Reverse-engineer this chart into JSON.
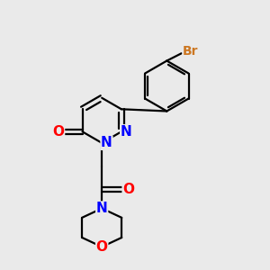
{
  "background_color": "#EAEAEA",
  "bond_color": "#000000",
  "bond_width": 1.6,
  "atom_colors": {
    "N": "#0000FF",
    "O": "#FF0000",
    "Br": "#CC7722"
  },
  "font_size_atom": 11,
  "font_size_br": 10
}
